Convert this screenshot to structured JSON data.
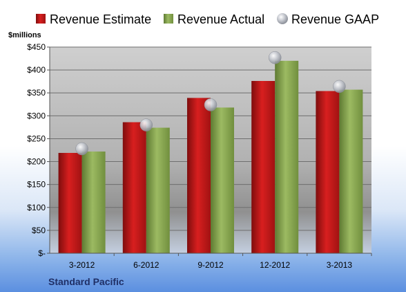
{
  "chart_data": {
    "type": "bar",
    "unit_label": "$millions",
    "categories": [
      "3-2012",
      "6-2012",
      "9-2012",
      "12-2012",
      "3-2013"
    ],
    "series": [
      {
        "name": "Revenue Estimate",
        "kind": "bar",
        "color": "#cc1a1a",
        "values": [
          219,
          286,
          339,
          376,
          354
        ]
      },
      {
        "name": "Revenue Actual",
        "kind": "bar",
        "color": "#8fae54",
        "values": [
          222,
          274,
          318,
          420,
          357
        ]
      },
      {
        "name": "Revenue GAAP",
        "kind": "marker",
        "color": "#b8bcc4",
        "values": [
          228,
          280,
          324,
          427,
          364
        ]
      }
    ],
    "y_ticks": [
      "$-",
      "$50",
      "$100",
      "$150",
      "$200",
      "$250",
      "$300",
      "$350",
      "$400",
      "$450"
    ],
    "ylim": [
      0,
      450
    ],
    "grid": true,
    "legend_position": "top",
    "company": "Standard Pacific"
  }
}
